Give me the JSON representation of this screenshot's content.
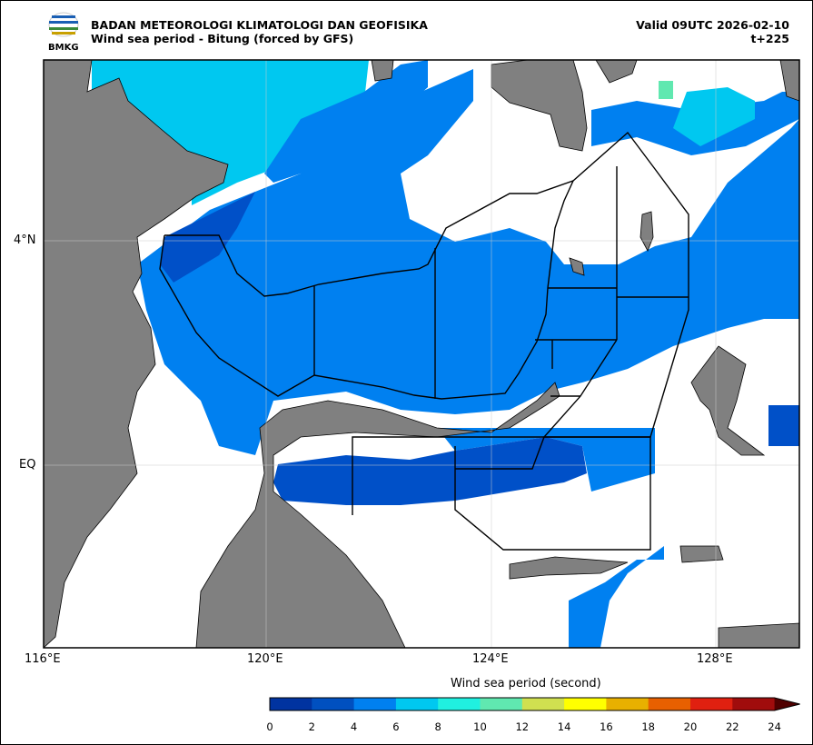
{
  "header": {
    "agency": "BADAN METEOROLOGI KLIMATOLOGI DAN GEOFISIKA",
    "title": "Wind sea period - Bitung (forced by GFS)",
    "valid": "Valid 09UTC 2026-02-10",
    "lead": "t+225",
    "logo_text": "BMKG"
  },
  "map": {
    "lat_labels": [
      "4°N",
      "EQ"
    ],
    "lon_labels": [
      "116°E",
      "120°E",
      "124°E",
      "128°E"
    ],
    "colors": {
      "land": "#808080",
      "sea_no_data": "#ffffff",
      "region_outline": "#000000"
    }
  },
  "colorbar": {
    "label": "Wind sea period (second)",
    "ticks": [
      "0",
      "2",
      "4",
      "6",
      "8",
      "10",
      "12",
      "14",
      "16",
      "18",
      "20",
      "22",
      "24"
    ],
    "colors": [
      "#0033a0",
      "#0050c0",
      "#0080f0",
      "#00c8f0",
      "#20f0e0",
      "#60e8b0",
      "#d0e050",
      "#ffff00",
      "#e8b000",
      "#e86000",
      "#e02010",
      "#a00c0c",
      "#500000"
    ],
    "extend": "max"
  }
}
